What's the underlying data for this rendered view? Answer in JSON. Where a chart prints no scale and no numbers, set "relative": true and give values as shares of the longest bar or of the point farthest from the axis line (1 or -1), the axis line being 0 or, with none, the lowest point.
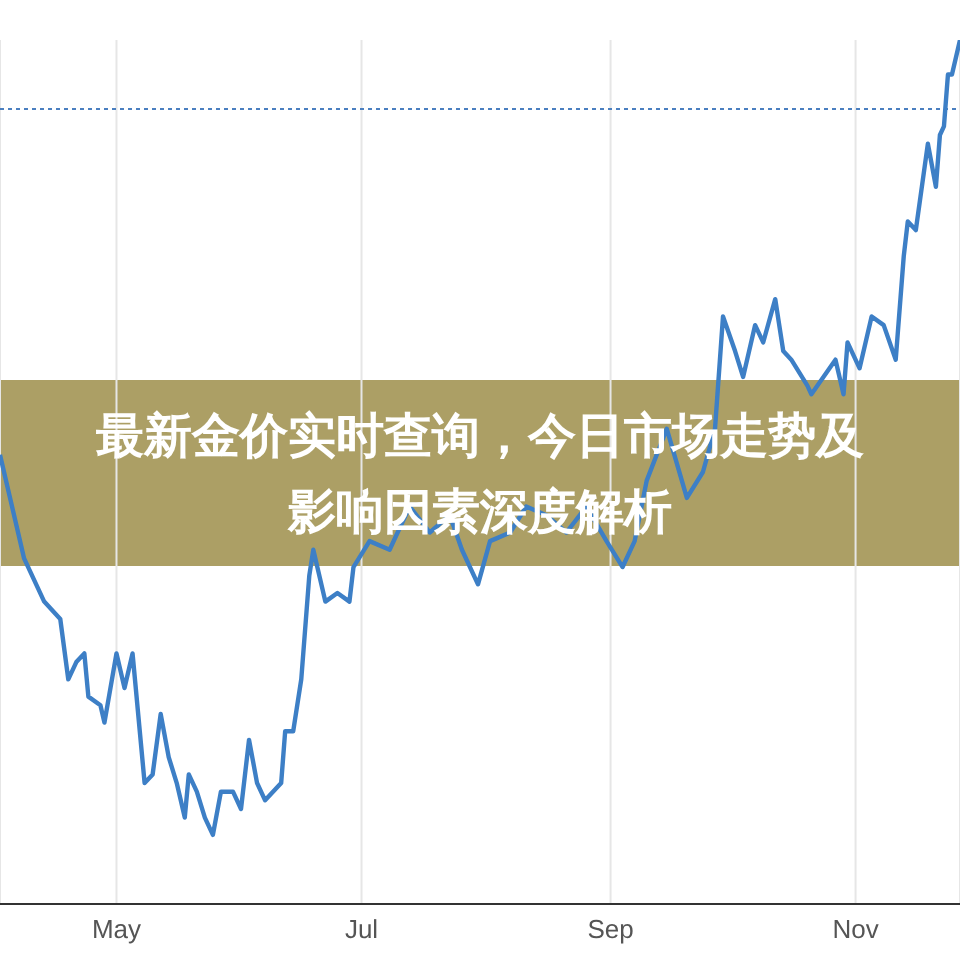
{
  "chart_data": {
    "type": "line",
    "title": "最新金价实时查询，今日市场走势及影响因素深度解析",
    "relative": true,
    "grid": "x",
    "marker": "none",
    "line_style": "solid",
    "xlim": [
      "--04-02",
      "--11-27"
    ],
    "xticks": [
      {
        "value": "--05-01",
        "label": "May"
      },
      {
        "value": "--07-01",
        "label": "Jul"
      },
      {
        "value": "--09-01",
        "label": "Sep"
      },
      {
        "value": "--11-01",
        "label": "Nov"
      }
    ],
    "ref_lines": [
      {
        "axis": "y",
        "value": 0.92,
        "label": null,
        "color": "#4a7fc0",
        "line_style": "dotted"
      }
    ],
    "series": [
      {
        "color": "#3d7fc6",
        "x": [
          "--04-02",
          "--04-08",
          "--04-13",
          "--04-17",
          "--04-19",
          "--04-21",
          "--04-23",
          "--04-24",
          "--04-27",
          "--04-28",
          "--05-01",
          "--05-03",
          "--05-05",
          "--05-08",
          "--05-10",
          "--05-12",
          "--05-14",
          "--05-16",
          "--05-18",
          "--05-19",
          "--05-21",
          "--05-23",
          "--05-25",
          "--05-27",
          "--05-30",
          "--06-01",
          "--06-03",
          "--06-05",
          "--06-07",
          "--06-11",
          "--06-12",
          "--06-14",
          "--06-16",
          "--06-18",
          "--06-19",
          "--06-22",
          "--06-25",
          "--06-28",
          "--06-29",
          "--07-03",
          "--07-08",
          "--07-13",
          "--07-18",
          "--07-23",
          "--07-26",
          "--07-30",
          "--08-02",
          "--08-07",
          "--08-11",
          "--08-16",
          "--08-21",
          "--08-26",
          "--08-31",
          "--09-04",
          "--09-07",
          "--09-10",
          "--09-15",
          "--09-20",
          "--09-24",
          "--09-27",
          "--09-29",
          "--10-02",
          "--10-04",
          "--10-07",
          "--10-09",
          "--10-12",
          "--10-14",
          "--10-16",
          "--10-20",
          "--10-21",
          "--10-27",
          "--10-29",
          "--10-30",
          "--11-02",
          "--11-05",
          "--11-08",
          "--11-11",
          "--11-13",
          "--11-14",
          "--11-16",
          "--11-19",
          "--11-21",
          "--11-22",
          "--11-23",
          "--11-24",
          "--11-25",
          "--11-27"
        ],
        "values": [
          0.52,
          0.4,
          0.35,
          0.33,
          0.26,
          0.28,
          0.29,
          0.24,
          0.23,
          0.21,
          0.29,
          0.25,
          0.29,
          0.14,
          0.15,
          0.22,
          0.17,
          0.14,
          0.1,
          0.15,
          0.13,
          0.1,
          0.08,
          0.13,
          0.13,
          0.11,
          0.19,
          0.14,
          0.12,
          0.14,
          0.2,
          0.2,
          0.26,
          0.38,
          0.41,
          0.35,
          0.36,
          0.35,
          0.39,
          0.42,
          0.41,
          0.46,
          0.43,
          0.45,
          0.41,
          0.37,
          0.42,
          0.43,
          0.46,
          0.45,
          0.43,
          0.46,
          0.42,
          0.39,
          0.42,
          0.49,
          0.55,
          0.47,
          0.5,
          0.55,
          0.68,
          0.64,
          0.61,
          0.67,
          0.65,
          0.7,
          0.64,
          0.63,
          0.6,
          0.59,
          0.63,
          0.59,
          0.65,
          0.62,
          0.68,
          0.67,
          0.63,
          0.75,
          0.79,
          0.78,
          0.88,
          0.83,
          0.89,
          0.9,
          0.96,
          0.96,
          1.0
        ]
      }
    ]
  }
}
